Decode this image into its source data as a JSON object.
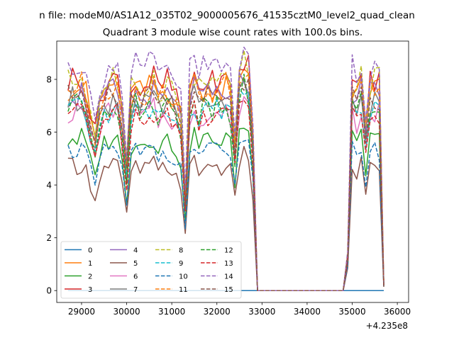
{
  "suptitle": "n file: modeM0/AS1A12_035T02_9000005676_41535cztM0_level2_quad_clean",
  "chart_data": {
    "type": "line",
    "title": "Quadrant 3 module wise count rates with 100.0s bins.",
    "xlabel": "",
    "ylabel": "",
    "x_offset_label": "+4.235e8",
    "xlim": [
      28450,
      36250
    ],
    "ylim": [
      -0.45,
      9.45
    ],
    "xticks": [
      29000,
      30000,
      31000,
      32000,
      33000,
      34000,
      35000,
      36000
    ],
    "xtick_labels": [
      "29000",
      "30000",
      "31000",
      "32000",
      "33000",
      "34000",
      "35000",
      "36000"
    ],
    "yticks": [
      0,
      2,
      4,
      6,
      8
    ],
    "ytick_labels": [
      "0",
      "2",
      "4",
      "6",
      "8"
    ],
    "grid": false,
    "legend_placement": "lower-left",
    "legend_columns": 4,
    "x": [
      28700,
      28800,
      28900,
      29000,
      29100,
      29200,
      29300,
      29400,
      29500,
      29600,
      29700,
      29800,
      29900,
      30000,
      30100,
      30200,
      30300,
      30400,
      30500,
      30600,
      30700,
      30800,
      30900,
      31000,
      31100,
      31200,
      31300,
      31400,
      31500,
      31600,
      31700,
      31800,
      31900,
      32000,
      32100,
      32200,
      32300,
      32400,
      32500,
      32600,
      32700,
      32800,
      32900,
      33000,
      33100,
      33200,
      33300,
      33400,
      33500,
      33600,
      33700,
      33800,
      33900,
      34000,
      34100,
      34200,
      34300,
      34400,
      34500,
      34600,
      34700,
      34800,
      34900,
      35000,
      35100,
      35200,
      35300,
      35400,
      35500,
      35600,
      35700
    ],
    "series": [
      {
        "name": "0",
        "color": "#1f77b4",
        "dash": "solid",
        "base": 0.0,
        "flat": true
      },
      {
        "name": "1",
        "color": "#ff7f0e",
        "dash": "solid",
        "base": 7.7
      },
      {
        "name": "2",
        "color": "#2ca02c",
        "dash": "solid",
        "base": 5.7
      },
      {
        "name": "3",
        "color": "#d62728",
        "dash": "solid",
        "base": 7.9
      },
      {
        "name": "4",
        "color": "#9467bd",
        "dash": "solid",
        "base": 7.4
      },
      {
        "name": "5",
        "color": "#8c564b",
        "dash": "solid",
        "base": 4.7
      },
      {
        "name": "6",
        "color": "#e377c2",
        "dash": "solid",
        "base": 6.7
      },
      {
        "name": "7",
        "color": "#7f7f7f",
        "dash": "solid",
        "base": 7.1
      },
      {
        "name": "8",
        "color": "#bcbd22",
        "dash": "dashed",
        "base": 7.9
      },
      {
        "name": "9",
        "color": "#17becf",
        "dash": "dashed",
        "base": 6.8
      },
      {
        "name": "10",
        "color": "#1f77b4",
        "dash": "dashed",
        "base": 5.3
      },
      {
        "name": "11",
        "color": "#ff7f0e",
        "dash": "dashed",
        "base": 7.6
      },
      {
        "name": "12",
        "color": "#2ca02c",
        "dash": "dashed",
        "base": 7.0
      },
      {
        "name": "13",
        "color": "#d62728",
        "dash": "dashed",
        "base": 6.7
      },
      {
        "name": "14",
        "color": "#9467bd",
        "dash": "dashed",
        "base": 8.5
      },
      {
        "name": "15",
        "color": "#8c564b",
        "dash": "dashed",
        "base": 7.3
      }
    ]
  }
}
